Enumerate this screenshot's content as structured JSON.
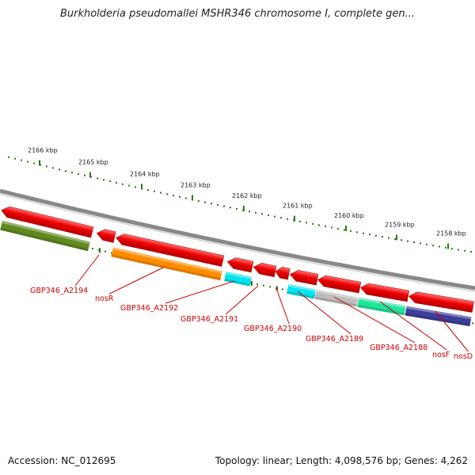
{
  "title": "Burkholderia pseudomallei MSHR346 chromosome I, complete gen...",
  "ticks": [
    {
      "label": "2166 kbp"
    },
    {
      "label": "2165 kbp"
    },
    {
      "label": "2164 kbp"
    },
    {
      "label": "2163 kbp"
    },
    {
      "label": "2162 kbp"
    },
    {
      "label": "2161 kbp"
    },
    {
      "label": "2160 kbp"
    },
    {
      "label": "2159 kbp"
    },
    {
      "label": "2158 kbp"
    }
  ],
  "genes": [
    {
      "label": "GBP346_A2194",
      "color": "#5f8a20"
    },
    {
      "label": "nosR",
      "color": "#ff8c00"
    },
    {
      "label": "GBP346_A2192",
      "color": "#ff8c00"
    },
    {
      "label": "GBP346_A2191",
      "color": "#00e5ee"
    },
    {
      "label": "GBP346_A2190",
      "color": "#00e5ee"
    },
    {
      "label": "GBP346_A2189",
      "color": "#bdbdbd"
    },
    {
      "label": "GBP346_A2188",
      "color": "#1ee59a"
    },
    {
      "label": "nosF",
      "color": "#3d3d9a"
    },
    {
      "label": "nosD",
      "color": "#3d3d9a"
    }
  ],
  "colors": {
    "forward_strand": "#ee0000",
    "backbone": "#888888",
    "tick": "#2a7a14",
    "label": "#cc0000"
  },
  "footer": {
    "accession": "Accession: NC_012695",
    "summary": "Topology: linear; Length: 4,098,576 bp; Genes: 4,262"
  }
}
